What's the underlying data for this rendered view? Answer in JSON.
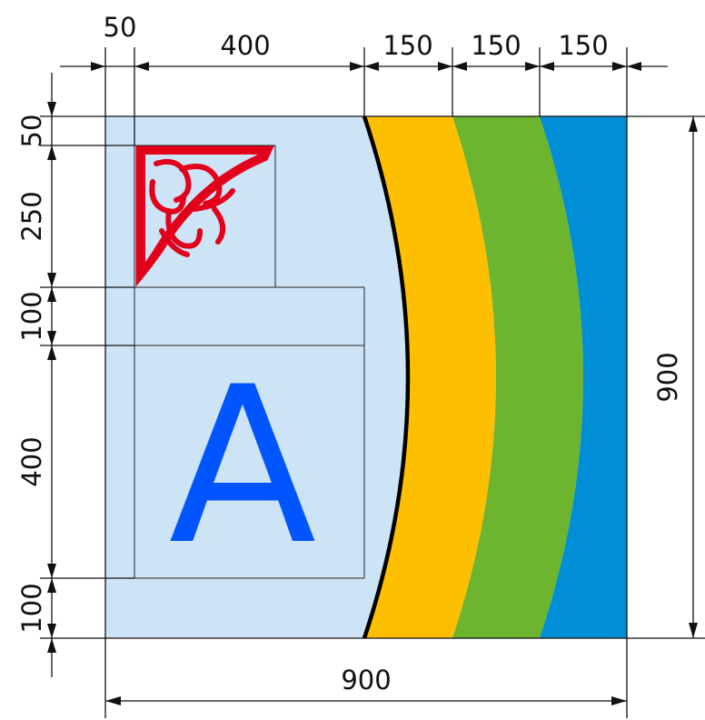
{
  "colors": {
    "background_panel": "#cde4f7",
    "ornament": "#e2001a",
    "letter": "#0055ff",
    "arc_line": "#000000",
    "band_yellow": "#fdbf00",
    "band_green": "#6db42f",
    "band_blue": "#008ed6",
    "dimension_ink": "#111111"
  },
  "icons": {
    "ornament": "red-corner-ornament-icon",
    "letter": "letter-a-icon"
  },
  "letter_text": "A",
  "dimensions": {
    "top": [
      "50",
      "400",
      "150",
      "150",
      "150"
    ],
    "left": [
      "50",
      "250",
      "100",
      "400",
      "100"
    ],
    "right": "900",
    "bottom": "900"
  }
}
